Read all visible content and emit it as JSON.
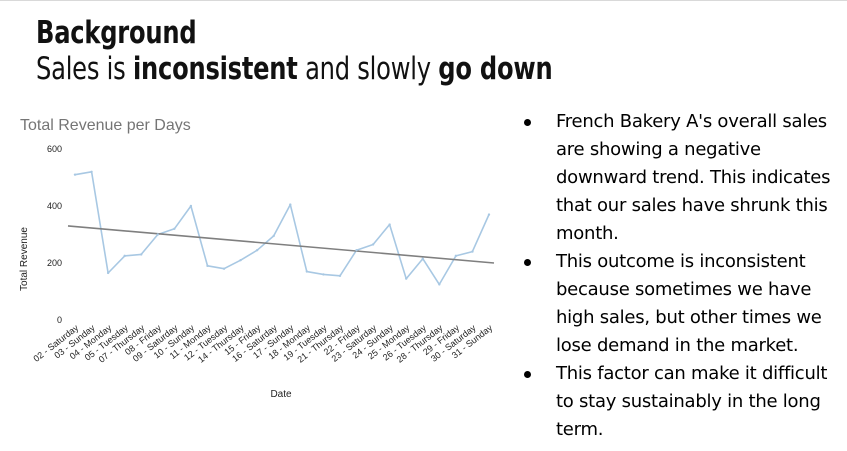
{
  "slide": {
    "title": "Background",
    "subtitle_parts": [
      {
        "text": "Sales is ",
        "bold": false
      },
      {
        "text": "inconsistent",
        "bold": true
      },
      {
        "text": " and slowly ",
        "bold": false
      },
      {
        "text": "go down",
        "bold": true
      }
    ],
    "bullets": [
      "French Bakery A's overall sales are showing a negative downward trend. This indicates that our sales have shrunk this month.",
      "This outcome is inconsistent because sometimes we have high sales, but other times we lose demand in the market.",
      "This factor can make it difficult to stay sustainably in the long term."
    ]
  },
  "chart_data": {
    "type": "line",
    "title": "Total Revenue per Days",
    "xlabel": "Date",
    "ylabel": "Total Revenue",
    "ylim": [
      0,
      600
    ],
    "yticks": [
      0,
      200,
      400,
      600
    ],
    "grid": false,
    "legend": "none",
    "categories": [
      "02 - Saturday",
      "03 - Sunday",
      "04 - Monday",
      "05 - Tuesday",
      "07 - Thursday",
      "08 - Friday",
      "09 - Saturday",
      "10 - Sunday",
      "11 - Monday",
      "12 - Tuesday",
      "14 - Thursday",
      "15 - Friday",
      "16 - Saturday",
      "17 - Sunday",
      "18 - Monday",
      "19 - Tuesday",
      "21 - Thursday",
      "22 - Friday",
      "23 - Saturday",
      "24 - Sunday",
      "25 - Monday",
      "26 - Tuesday",
      "28 - Thursday",
      "29 - Friday",
      "30 - Saturday",
      "31 - Sunday"
    ],
    "series": [
      {
        "values": [
          510,
          520,
          165,
          225,
          230,
          300,
          320,
          400,
          190,
          180,
          210,
          245,
          295,
          405,
          170,
          160,
          155,
          245,
          265,
          335,
          145,
          215,
          125,
          225,
          240,
          370
        ]
      }
    ],
    "trendline": {
      "start": 330,
      "end": 200
    },
    "colors": {
      "line": "#a8c8e3",
      "trend": "#7f7f7f",
      "title": "#757575",
      "text": "#222222"
    }
  }
}
